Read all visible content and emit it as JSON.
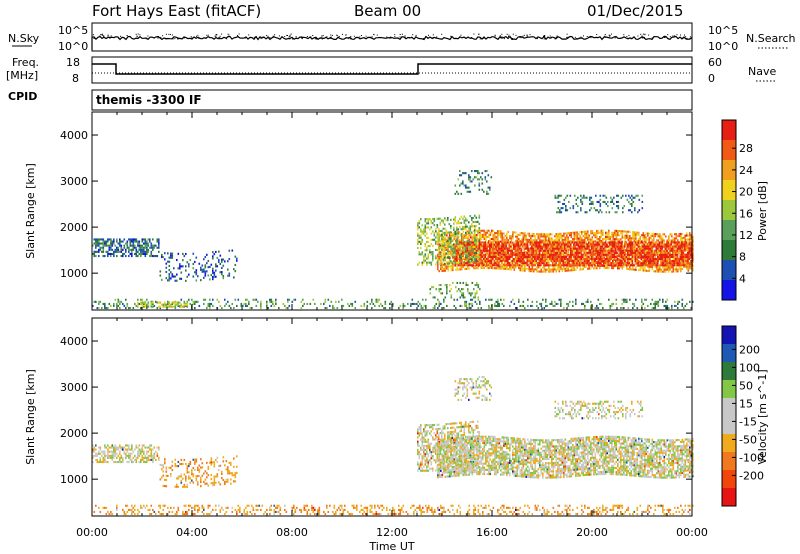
{
  "header": {
    "station": "Fort Hays East (fitACF)",
    "beam": "Beam 00",
    "date": "01/Dec/2015"
  },
  "top_panels": {
    "nsky_label": "N.Sky",
    "nsearch_label": "N.Search",
    "nsky_ticks": [
      "10^5",
      "10^0"
    ],
    "nsearch_ticks": [
      "10^5",
      "10^0"
    ],
    "freq_label": "Freq.",
    "freq_unit": "[MHz]",
    "freq_ticks": [
      "18",
      "8"
    ],
    "nave_label": "Nave",
    "nave_ticks": [
      "60",
      "0"
    ],
    "cpid_label": "CPID",
    "cpid_value": "themis -3300 IF"
  },
  "colors": {
    "power_scale": [
      "#1414e6",
      "#1e50b4",
      "#2e7a3a",
      "#5aa05a",
      "#9cc83c",
      "#f0d21e",
      "#f0a01e",
      "#f05a14",
      "#e61e14"
    ],
    "velocity_scale": [
      "#1414b4",
      "#1e5ab4",
      "#2e7a3a",
      "#82c846",
      "#c8c8c8",
      "#c8c8c8",
      "#f0aa1e",
      "#f0781e",
      "#f0460a",
      "#e61414"
    ]
  },
  "chart_data": [
    {
      "type": "heatmap",
      "name": "power-panel",
      "ylabel": "Slant Range [km]",
      "xlabel": "Time UT",
      "xlim": [
        0,
        24
      ],
      "ylim": [
        200,
        4500
      ],
      "x_ticks": [
        "00:00",
        "04:00",
        "08:00",
        "12:00",
        "16:00",
        "20:00",
        "00:00"
      ],
      "y_ticks": [
        1000,
        2000,
        3000,
        4000
      ],
      "colorbar_label": "Power [dB]",
      "colorbar_ticks": [
        "4",
        "8",
        "12",
        "16",
        "20",
        "24",
        "28"
      ],
      "colorbar_range": [
        0,
        30
      ],
      "regions": [
        {
          "t0": 0,
          "t1": 2.7,
          "r_top": 1750,
          "r_bot": 1350,
          "level": 7,
          "density": 0.6
        },
        {
          "t0": 2.7,
          "t1": 5.8,
          "r_top": 1450,
          "r_bot": 850,
          "level": 6,
          "density": 0.2
        },
        {
          "t0": 0,
          "t1": 24,
          "r_top": 420,
          "r_bot": 220,
          "level": 10,
          "density": 0.22
        },
        {
          "t0": 1.8,
          "t1": 3.8,
          "r_top": 360,
          "r_bot": 250,
          "level": 16,
          "density": 0.6
        },
        {
          "t0": 13.8,
          "t1": 24,
          "r_top": 1900,
          "r_bot": 1050,
          "level": 22,
          "density": 0.7
        },
        {
          "t0": 14.5,
          "t1": 24,
          "r_top": 1650,
          "r_bot": 1150,
          "level": 27,
          "density": 0.75
        },
        {
          "t0": 13,
          "t1": 15.5,
          "r_top": 2200,
          "r_bot": 1200,
          "level": 14,
          "density": 0.4
        },
        {
          "t0": 14.5,
          "t1": 16,
          "r_top": 3200,
          "r_bot": 2700,
          "level": 9,
          "density": 0.25
        },
        {
          "t0": 18.5,
          "t1": 22,
          "r_top": 2700,
          "r_bot": 2300,
          "level": 8,
          "density": 0.25
        },
        {
          "t0": 13.5,
          "t1": 15.5,
          "r_top": 800,
          "r_bot": 450,
          "level": 12,
          "density": 0.25
        }
      ]
    },
    {
      "type": "heatmap",
      "name": "velocity-panel",
      "ylabel": "Slant Range [km]",
      "xlabel": "Time UT",
      "xlim": [
        0,
        24
      ],
      "ylim": [
        200,
        4500
      ],
      "x_ticks": [
        "00:00",
        "04:00",
        "08:00",
        "12:00",
        "16:00",
        "20:00",
        "00:00"
      ],
      "y_ticks": [
        1000,
        2000,
        3000,
        4000
      ],
      "colorbar_label": "Velocity [m s^-1]",
      "colorbar_ticks": [
        "200",
        "100",
        "50",
        "15",
        "-15",
        "-50",
        "-100",
        "-200"
      ],
      "colorbar_range": [
        -250,
        250
      ],
      "regions": [
        {
          "t0": 0,
          "t1": 2.7,
          "r_top": 1750,
          "r_bot": 1350,
          "vel": 0,
          "density": 0.55
        },
        {
          "t0": 2.7,
          "t1": 5.8,
          "r_top": 1450,
          "r_bot": 850,
          "vel": -40,
          "density": 0.25
        },
        {
          "t0": 0,
          "t1": 24,
          "r_top": 420,
          "r_bot": 220,
          "vel": -40,
          "density": 0.3
        },
        {
          "t0": 13.8,
          "t1": 24,
          "r_top": 1900,
          "r_bot": 1050,
          "vel": 0,
          "density": 0.75
        },
        {
          "t0": 13,
          "t1": 15.5,
          "r_top": 2200,
          "r_bot": 1200,
          "vel": 0,
          "density": 0.5
        },
        {
          "t0": 14.5,
          "t1": 16,
          "r_top": 3200,
          "r_bot": 2700,
          "vel": 0,
          "density": 0.3
        },
        {
          "t0": 18.5,
          "t1": 22,
          "r_top": 2700,
          "r_bot": 2300,
          "vel": 0,
          "density": 0.3
        }
      ]
    }
  ]
}
